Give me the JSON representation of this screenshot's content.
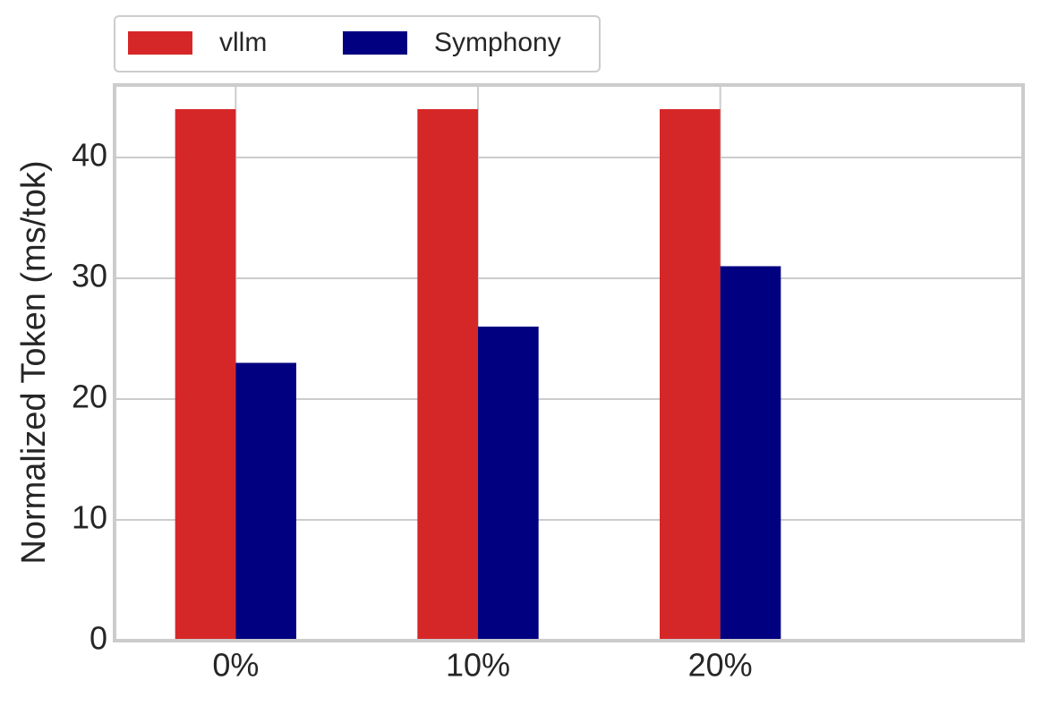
{
  "chart_data": {
    "type": "bar",
    "categories": [
      "0%",
      "10%",
      "20%"
    ],
    "series": [
      {
        "name": "vllm",
        "color": "#d62728",
        "values": [
          44,
          44,
          44
        ]
      },
      {
        "name": "Symphony",
        "color": "#000080",
        "values": [
          23,
          26,
          31
        ]
      }
    ],
    "y_label": "Normalized Token (ms/tok)",
    "ylim": [
      0,
      46
    ],
    "yticks": [
      0,
      10,
      20,
      30,
      40
    ],
    "grid": true,
    "legend": "top-left"
  }
}
